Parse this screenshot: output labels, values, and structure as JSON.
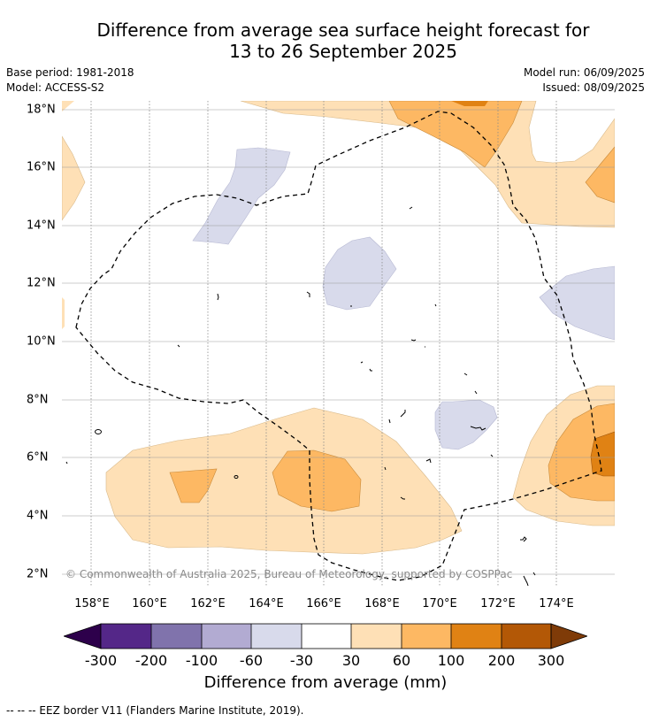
{
  "title_line1": "Difference from average sea surface height forecast for",
  "title_line2": "13 to 26 September 2025",
  "meta": {
    "base_period": "Base period: 1981-2018",
    "model": "Model: ACCESS-S2",
    "model_run": "Model run: 06/09/2025",
    "issued": "Issued: 08/09/2025"
  },
  "credit": "© Commonwealth of Australia 2025, Bureau of Meteorology, supported by COSPPac",
  "footnote": "--  --  -- EEZ border V11 (Flanders Marine Institute, 2019).",
  "lat_labels": [
    "18°N",
    "16°N",
    "14°N",
    "12°N",
    "10°N",
    "8°N",
    "6°N",
    "4°N",
    "2°N"
  ],
  "lon_labels": [
    "158°E",
    "160°E",
    "162°E",
    "164°E",
    "166°E",
    "168°E",
    "170°E",
    "172°E",
    "174°E"
  ],
  "colorbar": {
    "title": "Difference from average (mm)",
    "ticks": [
      "-300",
      "-200",
      "-100",
      "-60",
      "-30",
      "30",
      "60",
      "100",
      "200",
      "300"
    ],
    "colors": {
      "below_min": "#2d004b",
      "n300_n200": "#542788",
      "n200_n100": "#8073ac",
      "n100_n60": "#b2abd2",
      "n60_n30": "#d8daeb",
      "n30_30": "#ffffff",
      "p30_60": "#fee0b6",
      "p60_100": "#fdb863",
      "p100_200": "#e08214",
      "p200_300": "#b35806",
      "above_max": "#7f3b08"
    }
  }
}
